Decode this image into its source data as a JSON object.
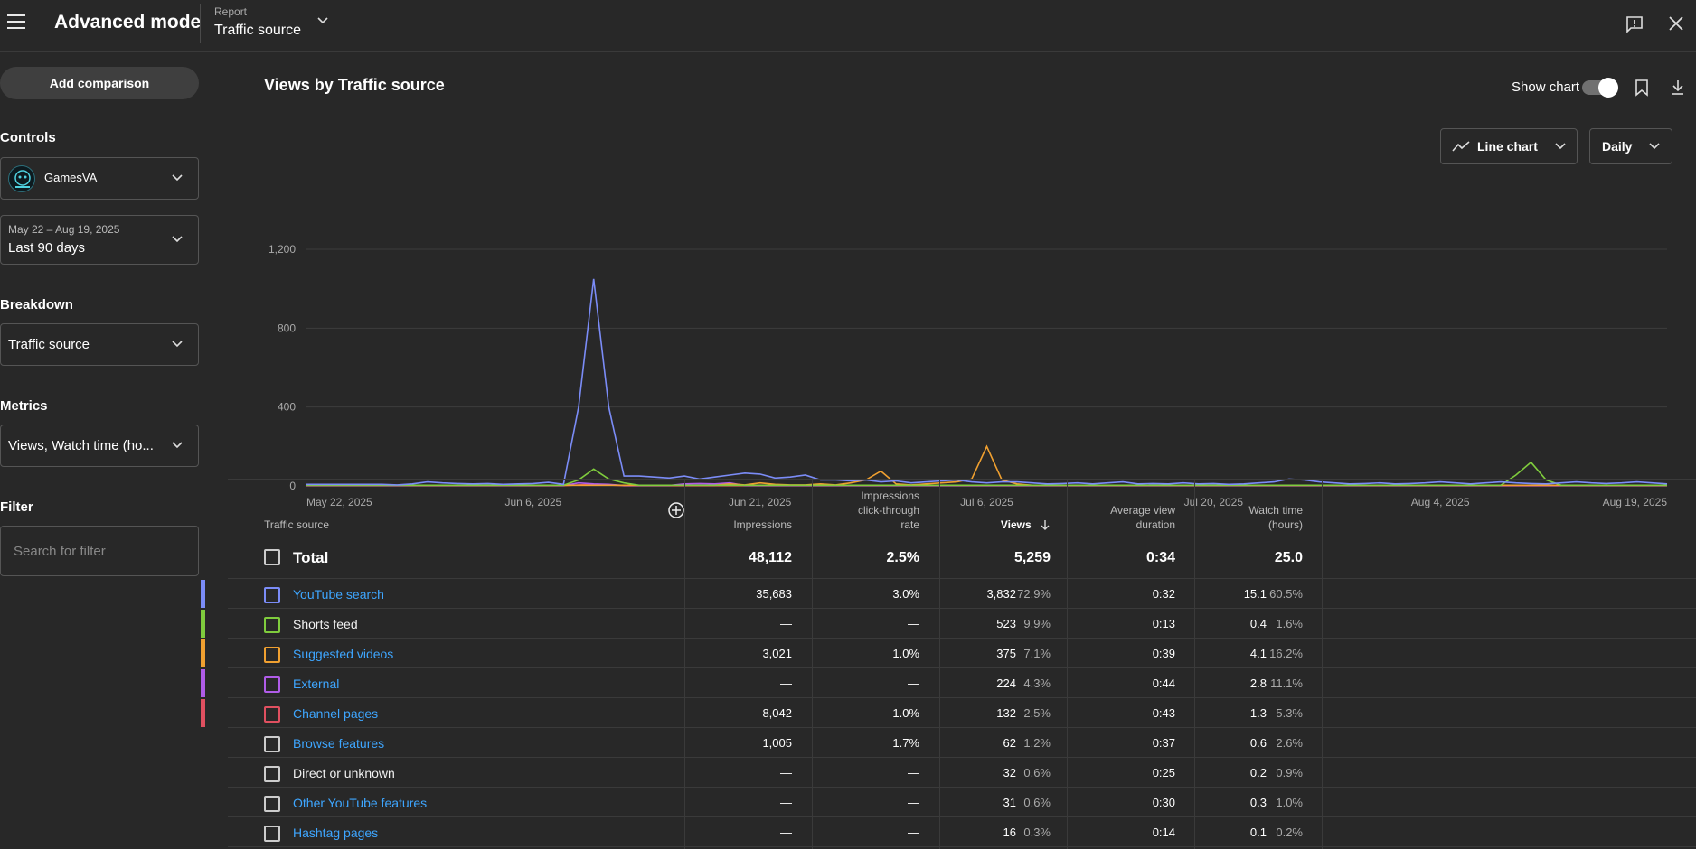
{
  "app": {
    "title": "Advanced mode",
    "report_label": "Report",
    "report_value": "Traffic source"
  },
  "sidebar": {
    "add_comparison": "Add comparison",
    "controls_label": "Controls",
    "channel": "GamesVA",
    "date_range": "May 22 – Aug 19, 2025",
    "date_preset": "Last 90 days",
    "breakdown_label": "Breakdown",
    "breakdown_value": "Traffic source",
    "metrics_label": "Metrics",
    "metrics_value": "Views, Watch time (ho...",
    "filter_label": "Filter",
    "filter_placeholder": "Search for filter"
  },
  "chart_header": {
    "title": "Views by Traffic source",
    "show_chart": "Show chart",
    "chart_type": "Line chart",
    "interval": "Daily"
  },
  "chart_data": {
    "type": "line",
    "title": "Views by Traffic source",
    "ylim": [
      0,
      1200
    ],
    "y_ticks": [
      "1,200",
      "800",
      "400",
      "0"
    ],
    "x_ticks": [
      "May 22, 2025",
      "Jun 6, 2025",
      "Jun 21, 2025",
      "Jul 6, 2025",
      "Jul 20, 2025",
      "Aug 4, 2025",
      "Aug 19, 2025"
    ],
    "grid": true,
    "days": 90,
    "series": [
      {
        "color": "#7b8cf7",
        "spikes": [
          [
            6,
            5
          ],
          [
            7,
            10
          ],
          [
            8,
            20
          ],
          [
            9,
            15
          ],
          [
            10,
            12
          ],
          [
            11,
            10
          ],
          [
            12,
            12
          ],
          [
            13,
            8
          ],
          [
            14,
            10
          ],
          [
            15,
            12
          ],
          [
            16,
            18
          ],
          [
            17,
            8
          ],
          [
            18,
            400
          ],
          [
            19,
            1050
          ],
          [
            20,
            400
          ],
          [
            21,
            50
          ],
          [
            22,
            50
          ],
          [
            23,
            45
          ],
          [
            24,
            40
          ],
          [
            25,
            50
          ],
          [
            26,
            35
          ],
          [
            27,
            45
          ],
          [
            28,
            55
          ],
          [
            29,
            65
          ],
          [
            30,
            60
          ],
          [
            31,
            40
          ],
          [
            32,
            45
          ],
          [
            33,
            55
          ],
          [
            34,
            30
          ],
          [
            35,
            30
          ],
          [
            36,
            25
          ],
          [
            37,
            30
          ],
          [
            38,
            20
          ],
          [
            39,
            25
          ],
          [
            40,
            15
          ],
          [
            41,
            20
          ],
          [
            42,
            25
          ],
          [
            43,
            30
          ],
          [
            44,
            20
          ],
          [
            45,
            15
          ],
          [
            46,
            20
          ],
          [
            47,
            20
          ],
          [
            48,
            15
          ],
          [
            49,
            10
          ],
          [
            50,
            12
          ],
          [
            51,
            15
          ],
          [
            52,
            10
          ],
          [
            53,
            15
          ],
          [
            54,
            20
          ],
          [
            55,
            10
          ],
          [
            56,
            12
          ],
          [
            57,
            10
          ],
          [
            58,
            15
          ],
          [
            59,
            10
          ],
          [
            60,
            12
          ],
          [
            61,
            8
          ],
          [
            62,
            10
          ],
          [
            63,
            15
          ],
          [
            64,
            20
          ],
          [
            65,
            35
          ],
          [
            66,
            30
          ],
          [
            67,
            20
          ],
          [
            68,
            15
          ],
          [
            69,
            10
          ],
          [
            70,
            12
          ],
          [
            71,
            15
          ],
          [
            72,
            10
          ],
          [
            73,
            12
          ],
          [
            74,
            15
          ],
          [
            75,
            20
          ],
          [
            76,
            15
          ],
          [
            77,
            10
          ],
          [
            78,
            15
          ],
          [
            79,
            20
          ],
          [
            80,
            15
          ],
          [
            81,
            12
          ],
          [
            82,
            10
          ],
          [
            83,
            15
          ],
          [
            84,
            20
          ],
          [
            85,
            15
          ],
          [
            86,
            12
          ],
          [
            87,
            15
          ],
          [
            88,
            20
          ],
          [
            89,
            15
          ],
          [
            90,
            10
          ]
        ],
        "base": 8
      },
      {
        "color": "#7fcc3d",
        "spikes": [
          [
            18,
            30
          ],
          [
            19,
            85
          ],
          [
            20,
            35
          ],
          [
            21,
            15
          ],
          [
            80,
            55
          ],
          [
            81,
            120
          ],
          [
            82,
            30
          ]
        ],
        "base": 3
      },
      {
        "color": "#f0a030",
        "spikes": [
          [
            28,
            10
          ],
          [
            29,
            5
          ],
          [
            30,
            15
          ],
          [
            31,
            8
          ],
          [
            32,
            5
          ],
          [
            33,
            5
          ],
          [
            34,
            10
          ],
          [
            35,
            5
          ],
          [
            36,
            15
          ],
          [
            37,
            30
          ],
          [
            38,
            75
          ],
          [
            39,
            10
          ],
          [
            40,
            5
          ],
          [
            41,
            10
          ],
          [
            42,
            15
          ],
          [
            43,
            20
          ],
          [
            44,
            35
          ],
          [
            45,
            200
          ],
          [
            46,
            30
          ],
          [
            47,
            10
          ]
        ],
        "base": 3
      },
      {
        "color": "#b05ce8",
        "spikes": [
          [
            18,
            15
          ],
          [
            19,
            10
          ],
          [
            20,
            8
          ],
          [
            25,
            10
          ],
          [
            26,
            12
          ],
          [
            27,
            10
          ],
          [
            28,
            15
          ]
        ],
        "base": 2
      },
      {
        "color": "#e05060",
        "spikes": [
          [
            18,
            5
          ],
          [
            19,
            8
          ],
          [
            20,
            5
          ]
        ],
        "base": 1
      }
    ]
  },
  "table": {
    "headers": {
      "source": "Traffic source",
      "impressions": "Impressions",
      "ctr_1": "Impressions",
      "ctr_2": "click-through",
      "ctr_3": "rate",
      "views": "Views",
      "avd_1": "Average view",
      "avd_2": "duration",
      "wt_1": "Watch time",
      "wt_2": "(hours)"
    },
    "total": {
      "label": "Total",
      "impressions": "48,112",
      "ctr": "2.5%",
      "views": "5,259",
      "avd": "0:34",
      "watch_time": "25.0"
    },
    "rows": [
      {
        "name": "YouTube search",
        "link": true,
        "color": "#7b8cf7",
        "impressions": "35,683",
        "ctr": "3.0%",
        "views": "3,832",
        "views_pct": "72.9%",
        "avd": "0:32",
        "wt": "15.1",
        "wt_pct": "60.5%"
      },
      {
        "name": "Shorts feed",
        "link": false,
        "color": "#7fcc3d",
        "impressions": "—",
        "ctr": "—",
        "views": "523",
        "views_pct": "9.9%",
        "avd": "0:13",
        "wt": "0.4",
        "wt_pct": "1.6%"
      },
      {
        "name": "Suggested videos",
        "link": true,
        "color": "#f0a030",
        "impressions": "3,021",
        "ctr": "1.0%",
        "views": "375",
        "views_pct": "7.1%",
        "avd": "0:39",
        "wt": "4.1",
        "wt_pct": "16.2%"
      },
      {
        "name": "External",
        "link": true,
        "color": "#b05ce8",
        "impressions": "—",
        "ctr": "—",
        "views": "224",
        "views_pct": "4.3%",
        "avd": "0:44",
        "wt": "2.8",
        "wt_pct": "11.1%"
      },
      {
        "name": "Channel pages",
        "link": true,
        "color": "#e05060",
        "impressions": "8,042",
        "ctr": "1.0%",
        "views": "132",
        "views_pct": "2.5%",
        "avd": "0:43",
        "wt": "1.3",
        "wt_pct": "5.3%"
      },
      {
        "name": "Browse features",
        "link": true,
        "color": "",
        "impressions": "1,005",
        "ctr": "1.7%",
        "views": "62",
        "views_pct": "1.2%",
        "avd": "0:37",
        "wt": "0.6",
        "wt_pct": "2.6%"
      },
      {
        "name": "Direct or unknown",
        "link": false,
        "color": "",
        "impressions": "—",
        "ctr": "—",
        "views": "32",
        "views_pct": "0.6%",
        "avd": "0:25",
        "wt": "0.2",
        "wt_pct": "0.9%"
      },
      {
        "name": "Other YouTube features",
        "link": true,
        "color": "",
        "impressions": "—",
        "ctr": "—",
        "views": "31",
        "views_pct": "0.6%",
        "avd": "0:30",
        "wt": "0.3",
        "wt_pct": "1.0%"
      },
      {
        "name": "Hashtag pages",
        "link": true,
        "color": "",
        "impressions": "—",
        "ctr": "—",
        "views": "16",
        "views_pct": "0.3%",
        "avd": "0:14",
        "wt": "0.1",
        "wt_pct": "0.2%"
      }
    ]
  }
}
